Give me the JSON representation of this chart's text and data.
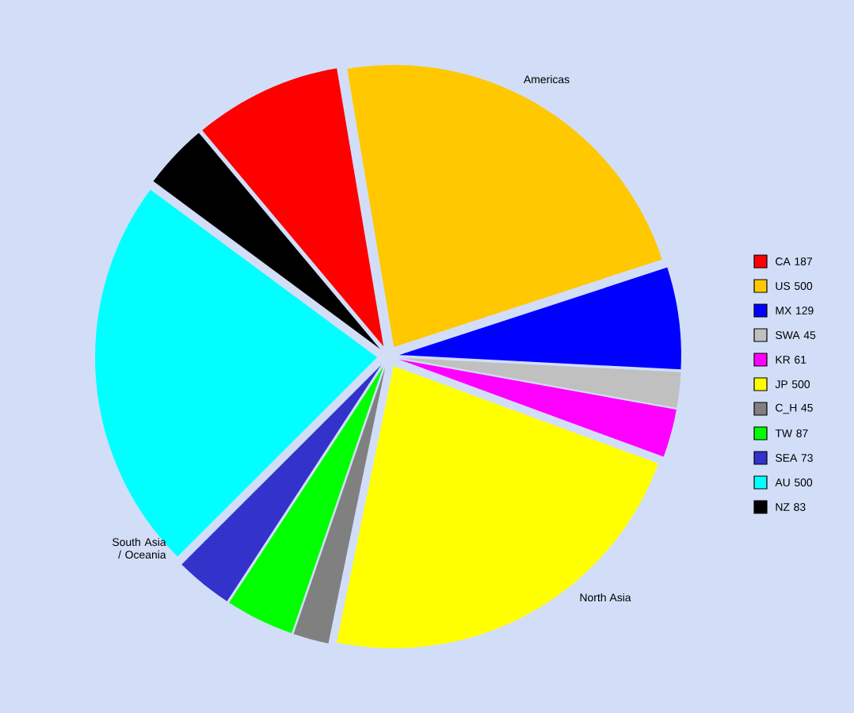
{
  "chart_data": {
    "type": "pie",
    "categories": [
      "CA",
      "US",
      "MX",
      "SWA",
      "KR",
      "JP",
      "C_H",
      "TW",
      "SEA",
      "AU",
      "NZ"
    ],
    "values": [
      187,
      500,
      129,
      45,
      61,
      500,
      45,
      87,
      73,
      500,
      83
    ],
    "value_labels": [
      "187",
      "500",
      "129",
      "45",
      "61",
      "500",
      "45",
      "87",
      "73",
      "500",
      "83"
    ],
    "colors": [
      "#ff0000",
      "#ffc800",
      "#0000ff",
      "#c0c0c0",
      "#ff00ff",
      "#ffff00",
      "#808080",
      "#00ff00",
      "#3333cc",
      "#00ffff",
      "#000000"
    ],
    "annotations": [
      "Americas",
      "North Asia",
      "South Asia / Oceania"
    ],
    "legend": "right"
  }
}
